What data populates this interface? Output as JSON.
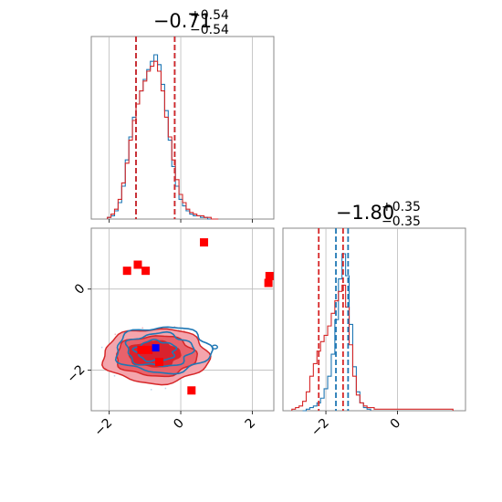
{
  "chart_data": [
    {
      "type": "histogram",
      "panel": "top-left",
      "title": {
        "median": "−0.71",
        "upper": "+0.54",
        "lower": "−0.54"
      },
      "xlim": [
        -2.5,
        2.6
      ],
      "series": [
        {
          "name": "",
          "color": "#1f77b4",
          "bin_centers": [
            -2.0,
            -1.9,
            -1.8,
            -1.7,
            -1.6,
            -1.5,
            -1.4,
            -1.3,
            -1.2,
            -1.1,
            -1.0,
            -0.9,
            -0.8,
            -0.7,
            -0.6,
            -0.5,
            -0.4,
            -0.3,
            -0.2,
            -0.1,
            0.0,
            0.1,
            0.2,
            0.3,
            0.4,
            0.5,
            0.6,
            0.7,
            0.8,
            0.9,
            1.0
          ],
          "values": [
            0.01,
            0.02,
            0.05,
            0.1,
            0.2,
            0.36,
            0.5,
            0.62,
            0.7,
            0.78,
            0.85,
            0.91,
            0.96,
            1.0,
            0.94,
            0.82,
            0.66,
            0.48,
            0.32,
            0.2,
            0.12,
            0.08,
            0.05,
            0.03,
            0.02,
            0.02,
            0.01,
            0.01,
            0.0,
            0.0,
            0.0
          ]
        },
        {
          "name": "",
          "color": "#d62728",
          "bin_centers": [
            -2.0,
            -1.9,
            -1.8,
            -1.7,
            -1.6,
            -1.5,
            -1.4,
            -1.3,
            -1.2,
            -1.1,
            -1.0,
            -0.9,
            -0.8,
            -0.7,
            -0.6,
            -0.5,
            -0.4,
            -0.3,
            -0.2,
            -0.1,
            0.0,
            0.1,
            0.2,
            0.3,
            0.4,
            0.5,
            0.6,
            0.7,
            0.8,
            0.9,
            1.0
          ],
          "values": [
            0.01,
            0.03,
            0.06,
            0.12,
            0.22,
            0.34,
            0.48,
            0.6,
            0.7,
            0.78,
            0.84,
            0.9,
            0.93,
            0.96,
            0.9,
            0.78,
            0.62,
            0.5,
            0.36,
            0.24,
            0.15,
            0.1,
            0.06,
            0.04,
            0.03,
            0.02,
            0.02,
            0.01,
            0.01,
            0.0,
            0.0
          ]
        }
      ],
      "quantile_lines": [
        {
          "x": -1.25,
          "color": "#1f77b4"
        },
        {
          "x": -0.17,
          "color": "#1f77b4"
        },
        {
          "x": -1.25,
          "color": "#d62728"
        },
        {
          "x": -0.17,
          "color": "#d62728"
        }
      ]
    },
    {
      "type": "contour",
      "panel": "bottom-left",
      "xlim": [
        -2.5,
        2.6
      ],
      "ylim": [
        -3.0,
        1.5
      ],
      "xticks": [
        -2,
        0,
        2
      ],
      "yticks": [
        -2,
        0
      ],
      "xtick_labels": [
        "−2",
        "0",
        "2"
      ],
      "ytick_labels": [
        "−2",
        "0"
      ],
      "grid": true,
      "red_contour_center": [
        -0.7,
        -1.65
      ],
      "blue_contour_center": [
        -0.6,
        -1.5
      ],
      "red_markers": [
        [
          -1.5,
          0.45
        ],
        [
          -1.2,
          0.6
        ],
        [
          -0.98,
          0.45
        ],
        [
          0.65,
          1.15
        ],
        [
          2.45,
          0.15
        ],
        [
          2.48,
          0.32
        ],
        [
          -1.1,
          -1.5
        ],
        [
          -0.9,
          -1.5
        ],
        [
          -0.6,
          -1.8
        ],
        [
          0.3,
          -2.5
        ]
      ],
      "blue_markers": [
        [
          -0.7,
          -1.45
        ]
      ]
    },
    {
      "type": "histogram",
      "panel": "bottom-right",
      "title": {
        "median": "−1.80",
        "upper": "+0.35",
        "lower": "−0.35"
      },
      "xlim": [
        -3.2,
        1.9
      ],
      "xticks": [
        -2,
        0
      ],
      "xtick_labels": [
        "−2",
        "0"
      ],
      "grid": true,
      "series": [
        {
          "name": "",
          "color": "#1f77b4",
          "bin_centers": [
            -2.6,
            -2.5,
            -2.4,
            -2.3,
            -2.2,
            -2.1,
            -2.0,
            -1.9,
            -1.8,
            -1.7,
            -1.6,
            -1.5,
            -1.4,
            -1.3,
            -1.2,
            -1.1,
            -1.0,
            -0.9,
            -0.8
          ],
          "values": [
            0.0,
            0.01,
            0.02,
            0.03,
            0.05,
            0.08,
            0.14,
            0.22,
            0.36,
            0.58,
            0.84,
            1.0,
            0.86,
            0.55,
            0.28,
            0.12,
            0.05,
            0.02,
            0.01
          ]
        },
        {
          "name": "",
          "color": "#d62728",
          "bin_centers": [
            -2.9,
            -2.8,
            -2.7,
            -2.6,
            -2.5,
            -2.4,
            -2.3,
            -2.2,
            -2.1,
            -2.0,
            -1.9,
            -1.8,
            -1.7,
            -1.6,
            -1.5,
            -1.4,
            -1.3,
            -1.2,
            -1.1,
            -1.0,
            -0.9,
            -0.8,
            -0.7,
            -0.6,
            0.2,
            1.2,
            1.5
          ],
          "values": [
            0.01,
            0.02,
            0.03,
            0.06,
            0.12,
            0.22,
            0.3,
            0.38,
            0.44,
            0.48,
            0.54,
            0.62,
            0.7,
            0.76,
            0.8,
            0.66,
            0.42,
            0.22,
            0.1,
            0.05,
            0.03,
            0.02,
            0.02,
            0.01,
            0.01,
            0.01,
            0.01
          ]
        }
      ],
      "quantile_lines": [
        {
          "x": -1.72,
          "color": "#1f77b4"
        },
        {
          "x": -1.38,
          "color": "#1f77b4"
        },
        {
          "x": -2.2,
          "color": "#d62728"
        },
        {
          "x": -1.52,
          "color": "#d62728"
        }
      ]
    }
  ]
}
